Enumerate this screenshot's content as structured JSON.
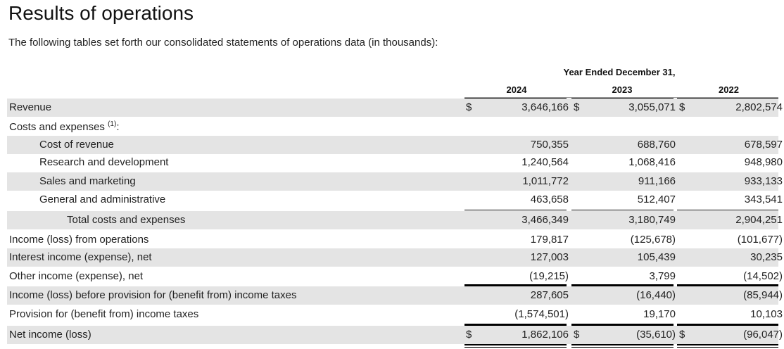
{
  "header": {
    "title": "Results of operations",
    "subtitle": "The following tables set forth our consolidated statements of operations data (in thousands):"
  },
  "table": {
    "period_header": "Year Ended December 31,",
    "years": [
      "2024",
      "2023",
      "2022"
    ],
    "currency_symbol": "$",
    "rows": [
      {
        "label": "Revenue",
        "indent": 0,
        "shaded": true,
        "currency": true,
        "values": [
          "3,646,166",
          "3,055,071",
          "2,802,574"
        ]
      },
      {
        "label": "Costs and expenses",
        "footnote": "(1)",
        "label_suffix": ":",
        "indent": 0,
        "shaded": false,
        "currency": false,
        "values": [
          "",
          "",
          ""
        ]
      },
      {
        "label": "Cost of revenue",
        "indent": 1,
        "shaded": true,
        "currency": false,
        "values": [
          "750,355",
          "688,760",
          "678,597"
        ]
      },
      {
        "label": "Research and development",
        "indent": 1,
        "shaded": false,
        "currency": false,
        "values": [
          "1,240,564",
          "1,068,416",
          "948,980"
        ]
      },
      {
        "label": "Sales and marketing",
        "indent": 1,
        "shaded": true,
        "currency": false,
        "values": [
          "1,011,772",
          "911,166",
          "933,133"
        ]
      },
      {
        "label": "General and administrative",
        "indent": 1,
        "shaded": false,
        "currency": false,
        "values": [
          "463,658",
          "512,407",
          "343,541"
        ]
      },
      {
        "label": "Total costs and expenses",
        "indent": 2,
        "shaded": true,
        "currency": false,
        "values": [
          "3,466,349",
          "3,180,749",
          "2,904,251"
        ]
      },
      {
        "label": "Income (loss) from operations",
        "indent": 0,
        "shaded": false,
        "currency": false,
        "values": [
          "179,817",
          "(125,678)",
          "(101,677)"
        ]
      },
      {
        "label": "Interest income (expense), net",
        "indent": 0,
        "shaded": true,
        "currency": false,
        "values": [
          "127,003",
          "105,439",
          "30,235"
        ]
      },
      {
        "label": "Other income (expense), net",
        "indent": 0,
        "shaded": false,
        "currency": false,
        "values": [
          "(19,215)",
          "3,799",
          "(14,502)"
        ]
      },
      {
        "label": "Income (loss) before provision for (benefit from) income taxes",
        "indent": 0,
        "shaded": true,
        "currency": false,
        "values": [
          "287,605",
          "(16,440)",
          "(85,944)"
        ]
      },
      {
        "label": "Provision for (benefit from) income taxes",
        "indent": 0,
        "shaded": false,
        "currency": false,
        "values": [
          "(1,574,501)",
          "19,170",
          "10,103"
        ]
      },
      {
        "label": "Net income (loss)",
        "indent": 0,
        "shaded": true,
        "currency": true,
        "values": [
          "1,862,106",
          "(35,610)",
          "(96,047)"
        ]
      }
    ]
  }
}
